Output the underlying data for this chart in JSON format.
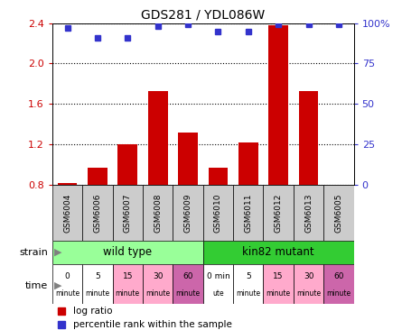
{
  "title": "GDS281 / YDL086W",
  "samples": [
    "GSM6004",
    "GSM6006",
    "GSM6007",
    "GSM6008",
    "GSM6009",
    "GSM6010",
    "GSM6011",
    "GSM6012",
    "GSM6013",
    "GSM6005"
  ],
  "log_ratio": [
    0.82,
    0.97,
    1.2,
    1.73,
    1.32,
    0.97,
    1.22,
    2.38,
    1.73,
    0.8
  ],
  "percentile": [
    97,
    91,
    91,
    98,
    99,
    95,
    95,
    99,
    99,
    99
  ],
  "bar_color": "#cc0000",
  "dot_color": "#3333cc",
  "bar_base": 0.8,
  "ylim": [
    0.8,
    2.4
  ],
  "yticks": [
    0.8,
    1.2,
    1.6,
    2.0,
    2.4
  ],
  "ytick_labels_left": [
    "0.8",
    "1.2",
    "1.6",
    "2.0",
    "2.4"
  ],
  "ytick_labels_right": [
    "0",
    "25",
    "50",
    "75",
    "100%"
  ],
  "ylabel_left_color": "#cc0000",
  "ylabel_right_color": "#3333cc",
  "strain_labels": [
    "wild type",
    "kin82 mutant"
  ],
  "strain_colors": [
    "#99ff99",
    "#33cc33"
  ],
  "time_labels": [
    [
      "0",
      "minute"
    ],
    [
      "5",
      "minute"
    ],
    [
      "15",
      "minute"
    ],
    [
      "30",
      "minute"
    ],
    [
      "60",
      "minute"
    ],
    [
      "0 min",
      "ute"
    ],
    [
      "5",
      "minute"
    ],
    [
      "15",
      "minute"
    ],
    [
      "30",
      "minute"
    ],
    [
      "60",
      "minute"
    ]
  ],
  "time_colors": [
    "white",
    "white",
    "#ffaacc",
    "#ffaacc",
    "#cc66aa",
    "white",
    "white",
    "#ffaacc",
    "#ffaacc",
    "#cc66aa"
  ],
  "sample_bg_color": "#cccccc",
  "legend_items": [
    {
      "color": "#cc0000",
      "label": "log ratio"
    },
    {
      "color": "#3333cc",
      "label": "percentile rank within the sample"
    }
  ]
}
